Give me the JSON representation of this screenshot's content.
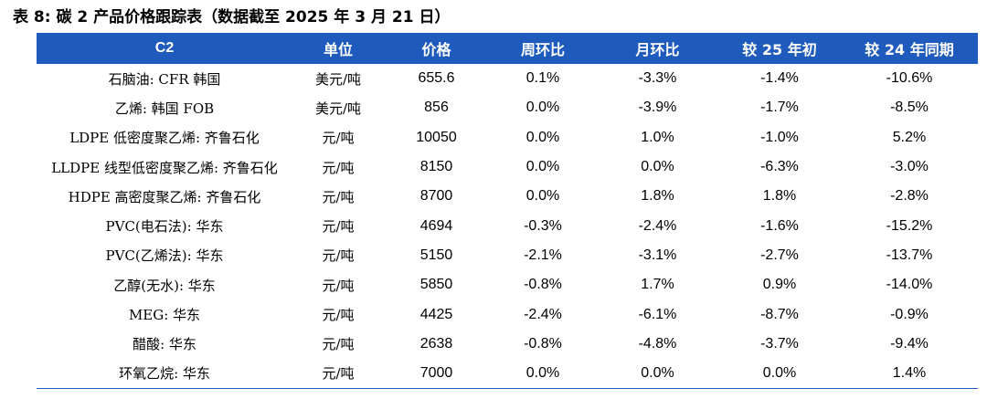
{
  "caption": "表 8: 碳 2 产品价格跟踪表（数据截至 2025 年 3 月 21 日）",
  "header": {
    "product": "C2",
    "unit": "单位",
    "price": "价格",
    "wow": "周环比",
    "mom": "月环比",
    "ytd": "较 25 年初",
    "yoy": "较 24 年同期"
  },
  "accent_color": "#1f5bbd",
  "rows": [
    {
      "name": "石脑油: CFR 韩国",
      "unit": "美元/吨",
      "price": "655.6",
      "wow": "0.1%",
      "mom": "-3.3%",
      "ytd": "-1.4%",
      "yoy": "-10.6%"
    },
    {
      "name": "乙烯: 韩国 FOB",
      "unit": "美元/吨",
      "price": "856",
      "wow": "0.0%",
      "mom": "-3.9%",
      "ytd": "-1.7%",
      "yoy": "-8.5%"
    },
    {
      "name": "LDPE 低密度聚乙烯: 齐鲁石化",
      "unit": "元/吨",
      "price": "10050",
      "wow": "0.0%",
      "mom": "1.0%",
      "ytd": "-1.0%",
      "yoy": "5.2%"
    },
    {
      "name": "LLDPE 线型低密度聚乙烯: 齐鲁石化",
      "unit": "元/吨",
      "price": "8150",
      "wow": "0.0%",
      "mom": "0.0%",
      "ytd": "-6.3%",
      "yoy": "-3.0%"
    },
    {
      "name": "HDPE 高密度聚乙烯: 齐鲁石化",
      "unit": "元/吨",
      "price": "8700",
      "wow": "0.0%",
      "mom": "1.8%",
      "ytd": "1.8%",
      "yoy": "-2.8%"
    },
    {
      "name": "PVC(电石法): 华东",
      "unit": "元/吨",
      "price": "4694",
      "wow": "-0.3%",
      "mom": "-2.4%",
      "ytd": "-1.6%",
      "yoy": "-15.2%"
    },
    {
      "name": "PVC(乙烯法): 华东",
      "unit": "元/吨",
      "price": "5150",
      "wow": "-2.1%",
      "mom": "-3.1%",
      "ytd": "-2.7%",
      "yoy": "-13.7%"
    },
    {
      "name": "乙醇(无水): 华东",
      "unit": "元/吨",
      "price": "5850",
      "wow": "-0.8%",
      "mom": "1.7%",
      "ytd": "0.9%",
      "yoy": "-14.0%"
    },
    {
      "name": "MEG: 华东",
      "unit": "元/吨",
      "price": "4425",
      "wow": "-2.4%",
      "mom": "-6.1%",
      "ytd": "-8.7%",
      "yoy": "-0.9%"
    },
    {
      "name": "醋酸: 华东",
      "unit": "元/吨",
      "price": "2638",
      "wow": "-0.8%",
      "mom": "-4.8%",
      "ytd": "-3.7%",
      "yoy": "-9.4%"
    },
    {
      "name": "环氧乙烷: 华东",
      "unit": "元/吨",
      "price": "7000",
      "wow": "0.0%",
      "mom": "0.0%",
      "ytd": "0.0%",
      "yoy": "1.4%"
    }
  ]
}
